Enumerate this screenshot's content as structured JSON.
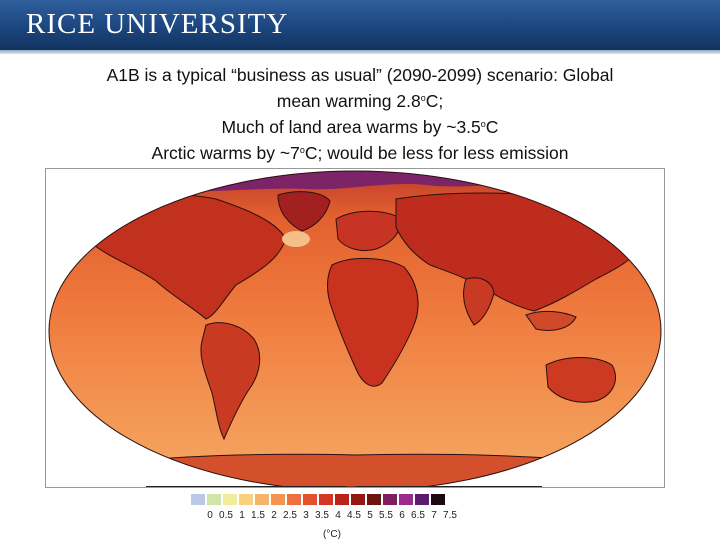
{
  "header": {
    "logo_text": "RICE UNIVERSITY"
  },
  "slide": {
    "line1": "A1B is a typical “business as usual” (2090-2099) scenario: Global",
    "line2_pre": "mean warming 2.8",
    "line2_sup": "o",
    "line2_post": "C;",
    "line3_pre": "Much of land area warms by ~3.5",
    "line3_sup": "o",
    "line3_post": "C",
    "line4_pre": "Arctic warms by ~7",
    "line4_sup": "o",
    "line4_post": "C; would be less for less emission"
  },
  "map": {
    "description_colors": {
      "ocean_mid": "#f08a4a",
      "ocean_south": "#f4a566",
      "land_hot": "#c8321e",
      "arctic": "#8b2a7a",
      "coast": "#2a1010"
    }
  },
  "legend": {
    "unit": "(°C)",
    "ticks": [
      "0",
      "0.5",
      "1",
      "1.5",
      "2",
      "2.5",
      "3",
      "3.5",
      "4",
      "4.5",
      "5",
      "5.5",
      "6",
      "6.5",
      "7",
      "7.5"
    ],
    "colors": [
      "#b9c9e6",
      "#cfe6a8",
      "#f3eb9c",
      "#f8d17e",
      "#f6b36a",
      "#f39450",
      "#ee7040",
      "#e44f2e",
      "#d43623",
      "#b92218",
      "#951714",
      "#6c1410",
      "#7e2060",
      "#9a2b8a",
      "#5c1c6c",
      "#1a0a10"
    ]
  }
}
